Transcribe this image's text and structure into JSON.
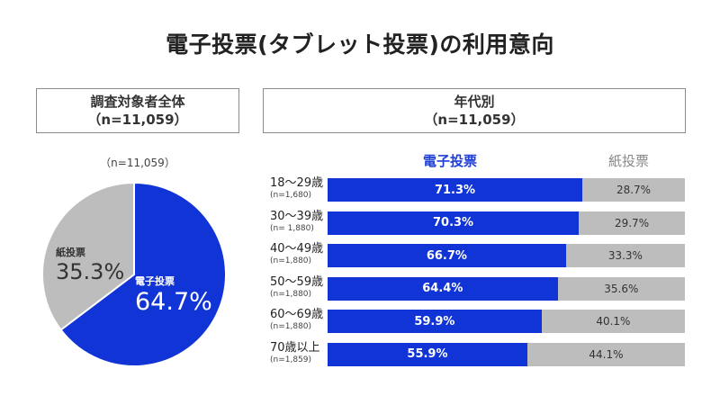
{
  "title": "電子投票(タブレット投票)の利用意向",
  "overall_box": {
    "line1": "調査対象者全体",
    "line2": "（n=11,059）"
  },
  "age_box": {
    "line1": "年代別",
    "line2": "（n=11,059）"
  },
  "pie_n": "（n=11,059）",
  "legend": {
    "electronic": "電子投票",
    "paper": "紙投票"
  },
  "colors": {
    "electronic": "#1034d6",
    "paper": "#bdbdbd"
  },
  "chart_data": [
    {
      "type": "pie",
      "title": "調査対象者全体",
      "slices": [
        {
          "label": "電子投票",
          "value": 64.7,
          "display": "64.7%"
        },
        {
          "label": "紙投票",
          "value": 35.3,
          "display": "35.3%"
        }
      ]
    },
    {
      "type": "bar",
      "orientation": "horizontal",
      "stacked": true,
      "title": "年代別",
      "categories": [
        {
          "age": "18～29歳",
          "n": "(n=1,680)"
        },
        {
          "age": "30～39歳",
          "n": "(n= 1,880)"
        },
        {
          "age": "40～49歳",
          "n": "(n=1,880)"
        },
        {
          "age": "50～59歳",
          "n": "(n=1,880)"
        },
        {
          "age": "60～69歳",
          "n": "(n=1,880)"
        },
        {
          "age": "70歳以上",
          "n": "(n=1,859)"
        }
      ],
      "series": [
        {
          "name": "電子投票",
          "values": [
            71.3,
            70.3,
            66.7,
            64.4,
            59.9,
            55.9
          ],
          "labels": [
            "71.3%",
            "70.3%",
            "66.7%",
            "64.4%",
            "59.9%",
            "55.9%"
          ]
        },
        {
          "name": "紙投票",
          "values": [
            28.7,
            29.7,
            33.3,
            35.6,
            40.1,
            44.1
          ],
          "labels": [
            "28.7%",
            "29.7%",
            "33.3%",
            "35.6%",
            "40.1%",
            "44.1%"
          ]
        }
      ],
      "xlim": [
        0,
        100
      ]
    }
  ]
}
